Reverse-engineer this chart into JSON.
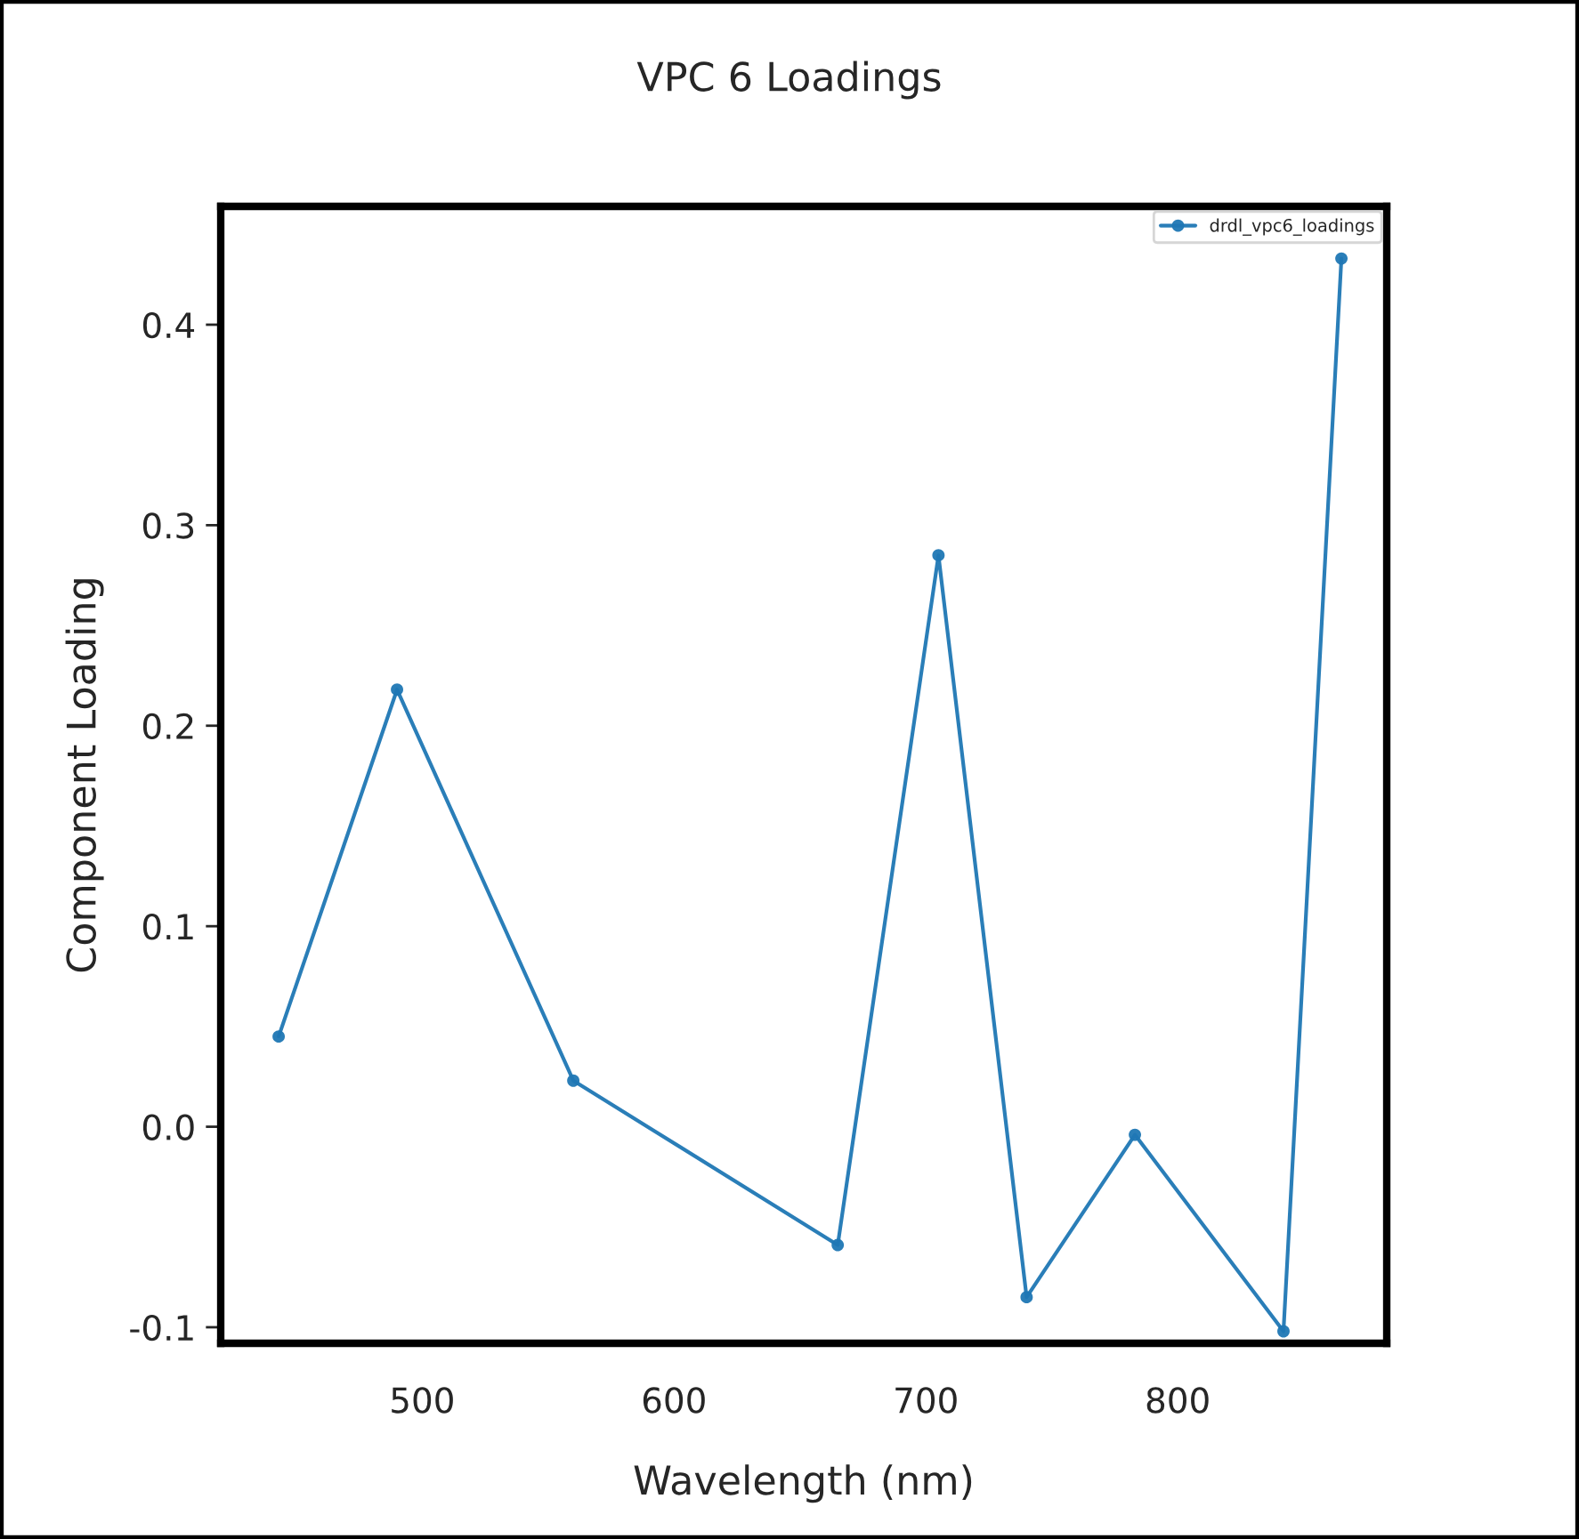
{
  "chart_data": {
    "type": "line",
    "title": "VPC 6 Loadings",
    "xlabel": "Wavelength (nm)",
    "ylabel": "Component Loading",
    "x": [
      443,
      490,
      560,
      665,
      705,
      740,
      783,
      842,
      865
    ],
    "series": [
      {
        "name": "drdl_vpc6_loadings",
        "color": "#1f77b4",
        "values": [
          0.045,
          0.218,
          0.023,
          -0.059,
          0.285,
          -0.085,
          -0.004,
          -0.102,
          0.433
        ]
      }
    ],
    "xlim": [
      420,
      883
    ],
    "xticks": [
      500,
      600,
      700,
      800
    ],
    "ylim": [
      -0.108,
      0.459
    ],
    "yticks": [
      {
        "value": -0.1,
        "label": "-0.1"
      },
      {
        "value": 0.0,
        "label": "0.0"
      },
      {
        "value": 0.1,
        "label": "0.1"
      },
      {
        "value": 0.2,
        "label": "0.2"
      },
      {
        "value": 0.3,
        "label": "0.3"
      },
      {
        "value": 0.4,
        "label": "0.4"
      }
    ],
    "marker": "circle",
    "line_style": "solid",
    "legend": "top right",
    "grid": false
  }
}
